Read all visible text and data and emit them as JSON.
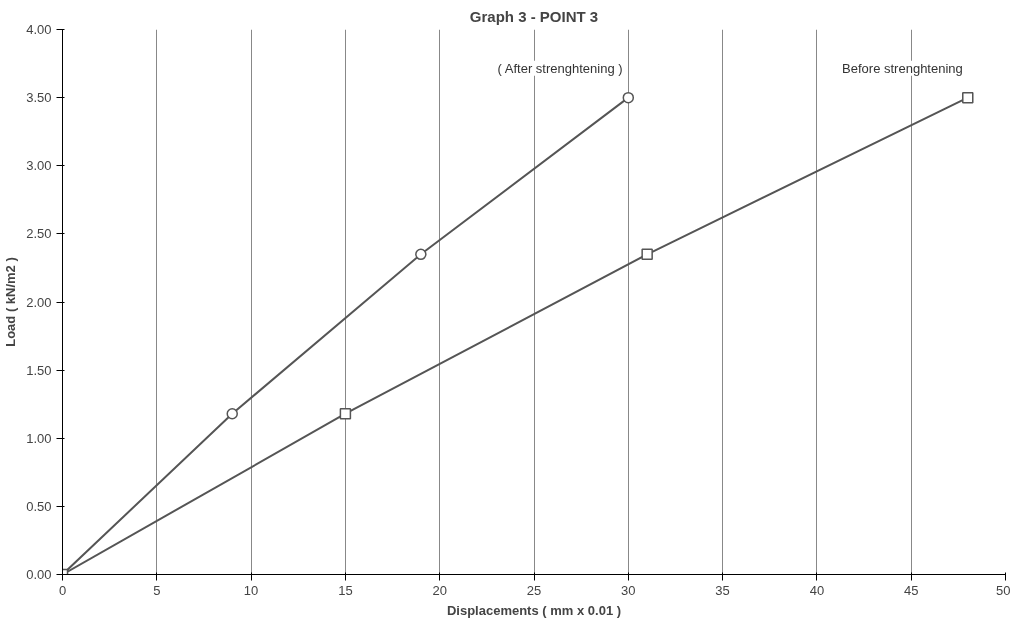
{
  "chart_data": {
    "type": "line",
    "title": "Graph 3 - POINT 3",
    "xlabel": "Displacements ( mm x 0.01 )",
    "ylabel": "Load ( kN/m2 )",
    "series": [
      {
        "name": "( After strenghtening )",
        "color": "#555555",
        "marker": "circle",
        "x": [
          0,
          9,
          19,
          30
        ],
        "values": [
          0,
          1.18,
          2.35,
          3.5
        ]
      },
      {
        "name": "Before strenghtening",
        "color": "#555555",
        "marker": "square",
        "x": [
          0,
          15,
          31,
          48
        ],
        "values": [
          0,
          1.18,
          2.35,
          3.5
        ]
      }
    ],
    "xlim": [
      0,
      50
    ],
    "xticks": [
      0,
      5,
      10,
      15,
      20,
      25,
      30,
      35,
      40,
      45,
      50
    ],
    "ylim": [
      0,
      4
    ],
    "yticks": [
      {
        "value": 0,
        "label": "0.00"
      },
      {
        "value": 0.5,
        "label": "0.50"
      },
      {
        "value": 1,
        "label": "1.00"
      },
      {
        "value": 1.5,
        "label": "1.50"
      },
      {
        "value": 2,
        "label": "2.00"
      },
      {
        "value": 2.5,
        "label": "2.50"
      },
      {
        "value": 3,
        "label": "3.00"
      },
      {
        "value": 3.5,
        "label": "3.50"
      },
      {
        "value": 4,
        "label": "4.00"
      }
    ],
    "grid": "x",
    "line_style": "solid"
  }
}
